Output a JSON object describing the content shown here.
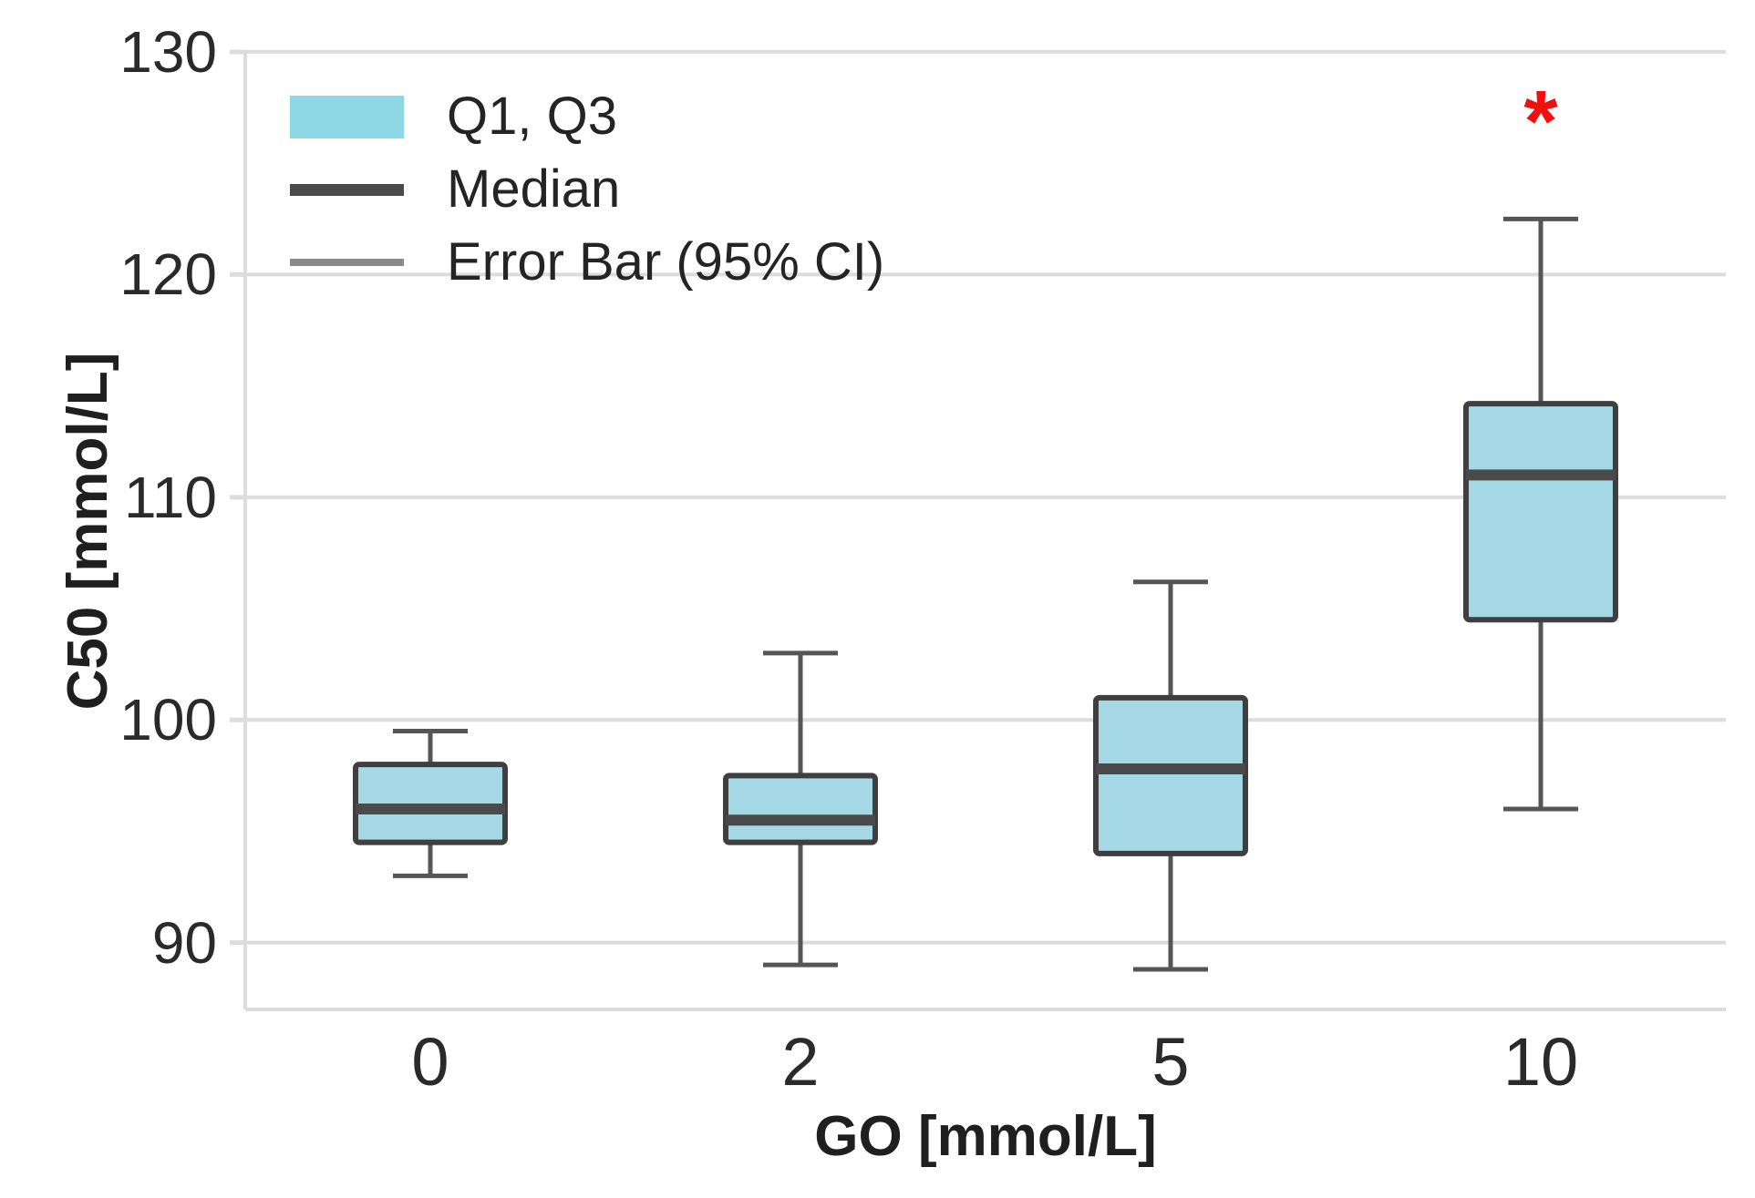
{
  "figure": {
    "background": "#ffffff"
  },
  "chart_data": {
    "type": "boxplot",
    "title": "",
    "xlabel": "GO [mmol/L]",
    "ylabel": "C50 [mmol/L]",
    "categories": [
      "0",
      "2",
      "5",
      "10"
    ],
    "ylim": [
      87,
      130
    ],
    "yticks": [
      90,
      100,
      110,
      120,
      130
    ],
    "ytick_labels": [
      "90",
      "100",
      "110",
      "120",
      "130"
    ],
    "grid": "horizontal",
    "legend": {
      "position": "top-left",
      "entries": [
        {
          "swatch": "box",
          "label": "Q1, Q3"
        },
        {
          "swatch": "median-line",
          "label": "Median"
        },
        {
          "swatch": "error-bar-line",
          "label": "Error Bar (95% CI)"
        }
      ]
    },
    "series": [
      {
        "category": "0",
        "whisker_low": 93.0,
        "q1": 94.5,
        "median": 96.0,
        "q3": 98.0,
        "whisker_high": 99.5
      },
      {
        "category": "2",
        "whisker_low": 89.0,
        "q1": 94.5,
        "median": 95.5,
        "q3": 97.5,
        "whisker_high": 103.0
      },
      {
        "category": "5",
        "whisker_low": 88.8,
        "q1": 94.0,
        "median": 97.8,
        "q3": 101.0,
        "whisker_high": 106.2
      },
      {
        "category": "10",
        "whisker_low": 96.0,
        "q1": 104.5,
        "median": 111.0,
        "q3": 114.2,
        "whisker_high": 122.5
      }
    ],
    "annotations": [
      {
        "text": "*",
        "category": "10",
        "y": 127.6,
        "color": "#f01010"
      }
    ],
    "colors": {
      "box_fill": "#a5d8e5",
      "box_border": "#3f3f3f",
      "median": "#4a4a4a",
      "whisker": "#555555",
      "grid": "#dcdcdc",
      "tick_text": "#2a2a2a"
    }
  }
}
